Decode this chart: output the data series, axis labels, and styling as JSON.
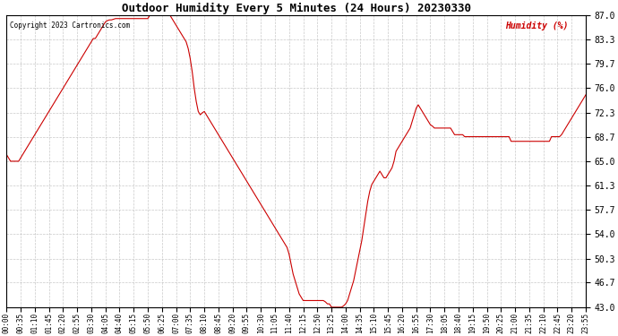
{
  "title": "Outdoor Humidity Every 5 Minutes (24 Hours) 20230330",
  "copyright": "Copyright 2023 Cartronics.com",
  "legend_label": "Humidity (%)",
  "ylim": [
    43.0,
    87.0
  ],
  "yticks": [
    43.0,
    46.7,
    50.3,
    54.0,
    57.7,
    61.3,
    65.0,
    68.7,
    72.3,
    76.0,
    79.7,
    83.3,
    87.0
  ],
  "line_color": "#cc0000",
  "bg_color": "#ffffff",
  "grid_color": "#bbbbbb",
  "title_color": "#000000",
  "copyright_color": "#000000",
  "legend_color": "#cc0000",
  "x_tick_every": 7,
  "humidity_data": [
    66.0,
    65.5,
    65.0,
    65.0,
    65.0,
    65.0,
    65.0,
    65.5,
    66.0,
    66.5,
    67.0,
    67.5,
    68.0,
    68.5,
    69.0,
    69.5,
    70.0,
    70.5,
    71.0,
    71.5,
    72.0,
    72.5,
    73.0,
    73.5,
    74.0,
    74.5,
    75.0,
    75.5,
    76.0,
    76.5,
    77.0,
    77.5,
    78.0,
    78.5,
    79.0,
    79.5,
    80.0,
    80.5,
    81.0,
    81.5,
    82.0,
    82.5,
    83.0,
    83.5,
    83.5,
    84.0,
    84.5,
    85.0,
    85.5,
    86.0,
    86.2,
    86.3,
    86.3,
    86.4,
    86.5,
    86.5,
    86.5,
    86.5,
    86.5,
    86.5,
    86.5,
    86.5,
    86.5,
    86.5,
    86.5,
    86.5,
    86.5,
    86.5,
    86.5,
    86.5,
    86.5,
    87.0,
    87.0,
    87.0,
    87.0,
    87.0,
    87.0,
    87.0,
    87.0,
    87.0,
    87.0,
    87.0,
    86.5,
    86.0,
    85.5,
    85.0,
    84.5,
    84.0,
    83.5,
    83.0,
    82.0,
    80.5,
    78.5,
    76.0,
    74.0,
    72.5,
    72.0,
    72.3,
    72.5,
    72.0,
    71.5,
    71.0,
    70.5,
    70.0,
    69.5,
    69.0,
    68.5,
    68.0,
    67.5,
    67.0,
    66.5,
    66.0,
    65.5,
    65.0,
    64.5,
    64.0,
    63.5,
    63.0,
    62.5,
    62.0,
    61.5,
    61.0,
    60.5,
    60.0,
    59.5,
    59.0,
    58.5,
    58.0,
    57.5,
    57.0,
    56.5,
    56.0,
    55.5,
    55.0,
    54.5,
    54.0,
    53.5,
    53.0,
    52.5,
    52.0,
    51.0,
    49.5,
    48.0,
    47.0,
    46.0,
    45.0,
    44.5,
    44.0,
    44.0,
    44.0,
    44.0,
    44.0,
    44.0,
    44.0,
    44.0,
    44.0,
    44.0,
    44.0,
    43.8,
    43.5,
    43.5,
    43.0,
    43.0,
    43.0,
    43.0,
    43.0,
    43.0,
    43.2,
    43.5,
    44.0,
    45.0,
    46.0,
    47.0,
    48.5,
    50.0,
    51.5,
    53.0,
    55.0,
    57.0,
    59.0,
    60.5,
    61.5,
    62.0,
    62.5,
    63.0,
    63.5,
    63.0,
    62.5,
    62.5,
    63.0,
    63.5,
    64.0,
    65.0,
    66.5,
    67.0,
    67.5,
    68.0,
    68.5,
    69.0,
    69.5,
    70.0,
    71.0,
    72.0,
    73.0,
    73.5,
    73.0,
    72.5,
    72.0,
    71.5,
    71.0,
    70.5,
    70.3,
    70.0,
    70.0,
    70.0,
    70.0,
    70.0,
    70.0,
    70.0,
    70.0,
    70.0,
    69.5,
    69.0,
    69.0,
    69.0,
    69.0,
    69.0,
    68.7,
    68.7,
    68.7,
    68.7,
    68.7,
    68.7,
    68.7,
    68.7,
    68.7,
    68.7,
    68.7,
    68.7,
    68.7,
    68.7,
    68.7,
    68.7,
    68.7,
    68.7,
    68.7,
    68.7,
    68.7,
    68.7,
    68.7,
    68.0,
    68.0,
    68.0,
    68.0,
    68.0,
    68.0,
    68.0,
    68.0,
    68.0,
    68.0,
    68.0,
    68.0,
    68.0,
    68.0,
    68.0,
    68.0,
    68.0,
    68.0,
    68.0,
    68.0,
    68.7,
    68.7,
    68.7,
    68.7,
    68.7,
    69.0,
    69.5,
    70.0,
    70.5,
    71.0,
    71.5,
    72.0,
    72.5,
    73.0,
    73.5,
    74.0,
    74.5,
    75.0,
    75.5,
    76.0
  ]
}
